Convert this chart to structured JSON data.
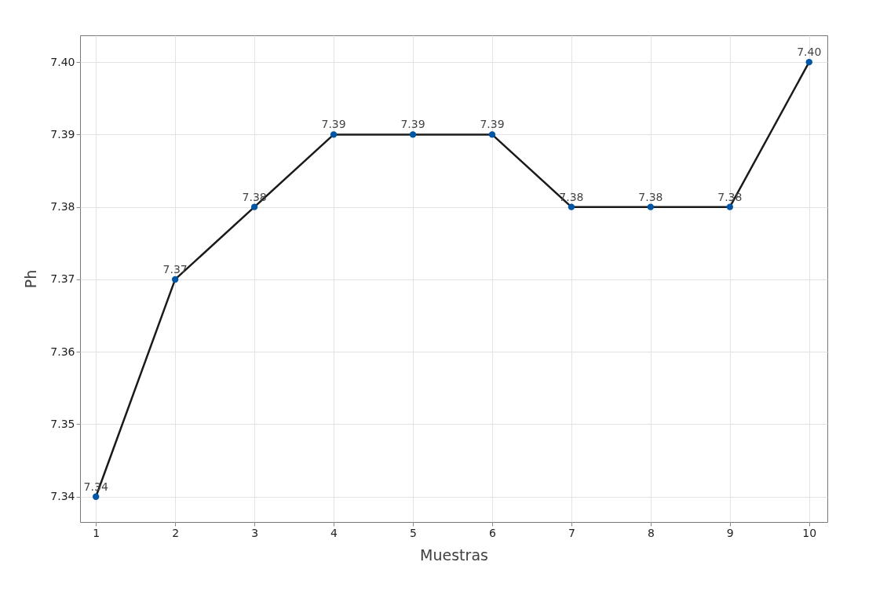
{
  "chart_data": {
    "type": "line",
    "xlabel": "Muestras",
    "ylabel": "Ph",
    "x": [
      1,
      2,
      3,
      4,
      5,
      6,
      7,
      8,
      9,
      10
    ],
    "series": [
      {
        "color": "#1a1a1a",
        "colors": [
          "#0055a5",
          "#0055a5",
          "#0055a5",
          "#0055a5",
          "#0055a5",
          "#0055a5",
          "#0055a5",
          "#0055a5",
          "#0055a5",
          "#0055a5"
        ],
        "values": [
          7.34,
          7.37,
          7.38,
          7.39,
          7.39,
          7.39,
          7.38,
          7.38,
          7.38,
          7.4
        ],
        "value_labels": [
          "7.34",
          "7.37",
          "7.38",
          "7.39",
          "7.39",
          "7.39",
          "7.38",
          "7.38",
          "7.38",
          "7.40"
        ]
      }
    ],
    "xlim": [
      0.8,
      10.23
    ],
    "xticks": [
      1,
      2,
      3,
      4,
      5,
      6,
      7,
      8,
      9,
      10
    ],
    "ylim": [
      7.3365,
      7.4037
    ],
    "yticks": [
      7.34,
      7.35,
      7.36,
      7.37,
      7.38,
      7.39,
      {
        "value": 7.4,
        "label": "7.40"
      }
    ],
    "grid": true,
    "marker": "circle",
    "line_style": "solid"
  }
}
